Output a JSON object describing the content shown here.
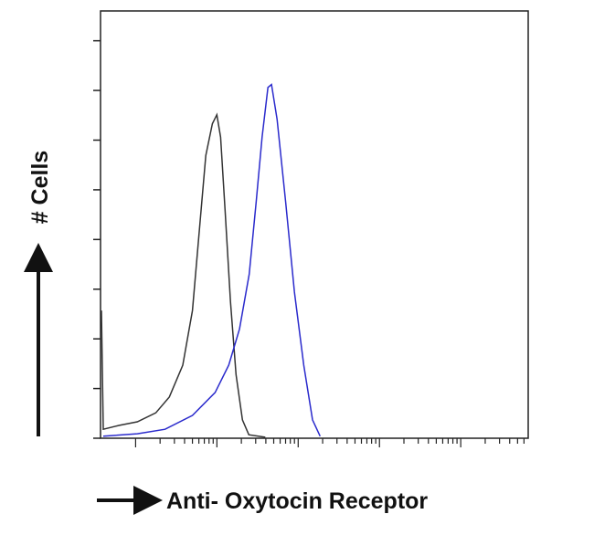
{
  "chart_data": {
    "type": "line",
    "y_label": "# Cells",
    "x_label": "Anti- Oxytocin Receptor",
    "x_log": true,
    "xlim": [
      0.37,
      67600
    ],
    "ylim": [
      0,
      8.6
    ],
    "xticks": [
      1,
      2,
      3,
      4,
      5,
      6,
      7,
      8,
      9,
      10,
      20,
      30,
      40,
      50,
      60,
      70,
      80,
      90,
      100,
      200,
      300,
      400,
      500,
      600,
      700,
      800,
      900,
      1000,
      2000,
      3000,
      4000,
      5000,
      6000,
      7000,
      8000,
      9000,
      10000,
      20000,
      30000,
      40000,
      50000,
      60000
    ],
    "yticks": [
      0,
      1,
      2,
      3,
      4,
      5,
      6,
      7,
      8
    ],
    "series": [
      {
        "color": "#333333",
        "x": [
          0.38,
          0.4,
          0.63,
          1.05,
          1.77,
          2.6,
          3.8,
          5.0,
          6.1,
          7.3,
          8.8,
          10,
          11.1,
          12.6,
          14.7,
          17.2,
          20.6,
          24.7,
          39.4
        ],
        "values": [
          2.57,
          0.18,
          0.26,
          0.33,
          0.51,
          0.83,
          1.47,
          2.57,
          4.22,
          5.69,
          6.33,
          6.51,
          6.06,
          4.59,
          2.75,
          1.28,
          0.37,
          0.07,
          0.02
        ]
      },
      {
        "color": "#2a2acc",
        "x": [
          0.4,
          1.05,
          2.3,
          5.0,
          9.5,
          14,
          19,
          25,
          30.5,
          36,
          42.5,
          47,
          55,
          70,
          90,
          117,
          150,
          186
        ],
        "values": [
          0.04,
          0.09,
          0.18,
          0.46,
          0.92,
          1.47,
          2.2,
          3.3,
          4.77,
          6.06,
          7.06,
          7.12,
          6.42,
          4.77,
          2.94,
          1.47,
          0.37,
          0.04
        ]
      }
    ]
  }
}
